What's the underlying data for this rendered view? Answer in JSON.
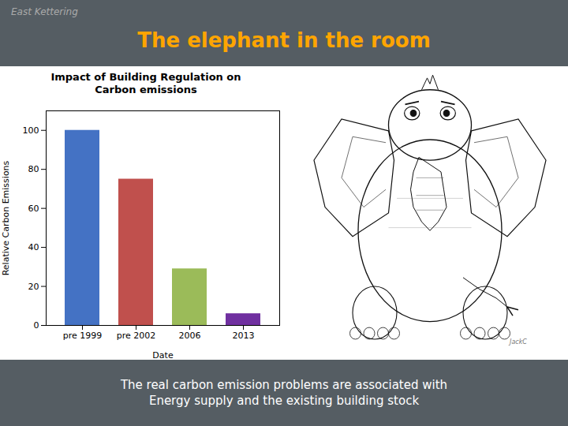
{
  "chart_data": {
    "type": "bar",
    "title": "The elephant in the room",
    "subtitle": "Impact of Building Regulation on\nCarbon emissions",
    "annotations": [
      "East Kettering",
      "The real carbon emission problems are associated with\nEnergy supply and the existing building stock",
      "JackC"
    ],
    "categories": [
      "pre 1999",
      "pre 2002",
      "2006",
      "2013"
    ],
    "values": [
      100,
      75,
      29,
      6
    ],
    "colors": [
      "#4472C4",
      "#C0504D",
      "#9BBB59",
      "#7030A0"
    ],
    "xlabel": "Date",
    "ylabel": "Relative Carbon Emissions",
    "ylim": [
      0,
      110
    ],
    "yticks": [
      0,
      20,
      40,
      60,
      80,
      100
    ],
    "grid": false,
    "data_labels": false
  }
}
